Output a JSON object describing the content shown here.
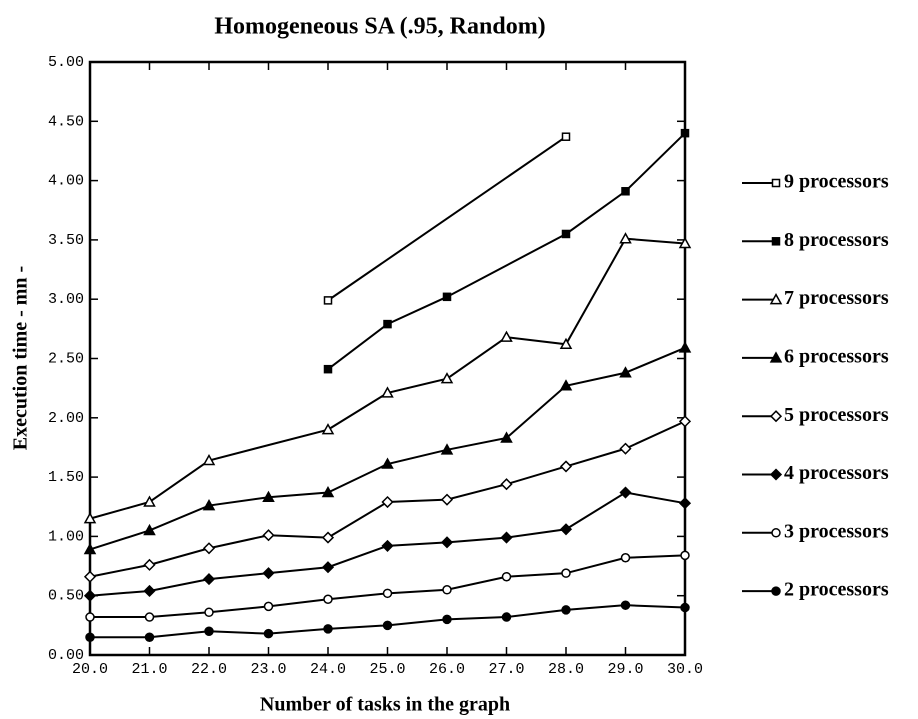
{
  "chart_data": {
    "type": "line",
    "title": "Homogeneous SA (.95, Random)",
    "x_label": "Number of tasks in the graph",
    "y_label": "Execution time - mn -",
    "xlim": [
      20,
      30
    ],
    "xticks": [
      {
        "value": 20,
        "label": "20.0"
      },
      {
        "value": 21,
        "label": "21.0"
      },
      {
        "value": 22,
        "label": "22.0"
      },
      {
        "value": 23,
        "label": "23.0"
      },
      {
        "value": 24,
        "label": "24.0"
      },
      {
        "value": 25,
        "label": "25.0"
      },
      {
        "value": 26,
        "label": "26.0"
      },
      {
        "value": 27,
        "label": "27.0"
      },
      {
        "value": 28,
        "label": "28.0"
      },
      {
        "value": 29,
        "label": "29.0"
      },
      {
        "value": 30,
        "label": "30.0"
      }
    ],
    "ylim": [
      0,
      5
    ],
    "yticks": [
      {
        "value": 0,
        "label": "0.00"
      },
      {
        "value": 0.5,
        "label": "0.50"
      },
      {
        "value": 1,
        "label": "1.00"
      },
      {
        "value": 1.5,
        "label": "1.50"
      },
      {
        "value": 2,
        "label": "2.00"
      },
      {
        "value": 2.5,
        "label": "2.50"
      },
      {
        "value": 3,
        "label": "3.00"
      },
      {
        "value": 3.5,
        "label": "3.50"
      },
      {
        "value": 4,
        "label": "4.00"
      },
      {
        "value": 4.5,
        "label": "4.50"
      },
      {
        "value": 5,
        "label": "5.00"
      }
    ],
    "series": [
      {
        "name": "9 processors",
        "color": "#000000",
        "marker": "open-square",
        "x": [
          24,
          28
        ],
        "values": [
          2.99,
          4.37
        ]
      },
      {
        "name": "8 processors",
        "color": "#000000",
        "marker": "filled-square",
        "x": [
          24,
          25,
          26,
          28,
          29,
          30
        ],
        "values": [
          2.41,
          2.79,
          3.02,
          3.55,
          3.91,
          4.4
        ]
      },
      {
        "name": "7 processors",
        "color": "#000000",
        "marker": "open-triangle",
        "x": [
          20,
          21,
          22,
          24,
          25,
          26,
          27,
          28,
          29,
          30
        ],
        "values": [
          1.15,
          1.29,
          1.64,
          1.9,
          2.21,
          2.33,
          2.68,
          2.62,
          3.51,
          3.47
        ]
      },
      {
        "name": "6 processors",
        "color": "#000000",
        "marker": "filled-triangle",
        "x": [
          20,
          21,
          22,
          23,
          24,
          25,
          26,
          27,
          28,
          29,
          30
        ],
        "values": [
          0.89,
          1.05,
          1.26,
          1.33,
          1.37,
          1.61,
          1.73,
          1.83,
          2.27,
          2.38,
          2.59
        ]
      },
      {
        "name": "5 processors",
        "color": "#000000",
        "marker": "open-diamond",
        "x": [
          20,
          21,
          22,
          23,
          24,
          25,
          26,
          27,
          28,
          29,
          30
        ],
        "values": [
          0.66,
          0.76,
          0.9,
          1.01,
          0.99,
          1.29,
          1.31,
          1.44,
          1.59,
          1.74,
          1.97
        ]
      },
      {
        "name": "4 processors",
        "color": "#000000",
        "marker": "filled-diamond",
        "x": [
          20,
          21,
          22,
          23,
          24,
          25,
          26,
          27,
          28,
          29,
          30
        ],
        "values": [
          0.5,
          0.54,
          0.64,
          0.69,
          0.74,
          0.92,
          0.95,
          0.99,
          1.06,
          1.37,
          1.28
        ]
      },
      {
        "name": "3 processors",
        "color": "#000000",
        "marker": "open-circle",
        "x": [
          20,
          21,
          22,
          23,
          24,
          25,
          26,
          27,
          28,
          29,
          30
        ],
        "values": [
          0.32,
          0.32,
          0.36,
          0.41,
          0.47,
          0.52,
          0.55,
          0.66,
          0.69,
          0.82,
          0.84
        ]
      },
      {
        "name": "2 processors",
        "color": "#000000",
        "marker": "filled-circle",
        "x": [
          20,
          21,
          22,
          23,
          24,
          25,
          26,
          27,
          28,
          29,
          30
        ],
        "values": [
          0.15,
          0.15,
          0.2,
          0.18,
          0.22,
          0.25,
          0.3,
          0.32,
          0.38,
          0.42,
          0.4
        ]
      }
    ]
  }
}
